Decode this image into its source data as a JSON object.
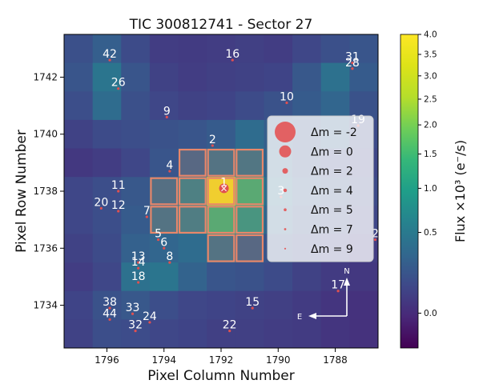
{
  "chart_data": {
    "type": "heatmap",
    "title": "TIC 300812741 - Sector 27",
    "xlabel": "Pixel Column Number",
    "ylabel": "Pixel Row Number",
    "x_axis_inverted": true,
    "xlim": [
      1797.5,
      1786.5
    ],
    "ylim": [
      1732.5,
      1743.5
    ],
    "x_ticks": [
      1796,
      1794,
      1792,
      1790,
      1788
    ],
    "y_ticks": [
      1734,
      1736,
      1738,
      1740,
      1742
    ],
    "columns": [
      1797,
      1796,
      1795,
      1794,
      1793,
      1792,
      1791,
      1790,
      1789,
      1788,
      1787
    ],
    "rows": [
      1743,
      1742,
      1741,
      1740,
      1739,
      1738,
      1737,
      1736,
      1735,
      1734,
      1733
    ],
    "colormap": "viridis",
    "flux_grid_x1000": [
      [
        0.15,
        0.25,
        0.12,
        0.06,
        0.05,
        0.06,
        0.07,
        0.06,
        0.1,
        0.15,
        0.18
      ],
      [
        0.18,
        0.45,
        0.18,
        0.08,
        0.06,
        0.07,
        0.08,
        0.09,
        0.2,
        0.4,
        0.22
      ],
      [
        0.14,
        0.35,
        0.15,
        0.1,
        0.08,
        0.09,
        0.12,
        0.16,
        0.22,
        0.3,
        0.16
      ],
      [
        0.08,
        0.12,
        0.14,
        0.16,
        0.18,
        0.22,
        0.35,
        0.25,
        0.18,
        0.25,
        0.12
      ],
      [
        0.04,
        0.06,
        0.1,
        0.18,
        0.28,
        0.4,
        0.45,
        0.28,
        0.16,
        0.12,
        0.1
      ],
      [
        0.1,
        0.14,
        0.2,
        0.35,
        0.6,
        3.8,
        1.4,
        0.38,
        0.22,
        0.16,
        0.12
      ],
      [
        0.1,
        0.14,
        0.22,
        0.4,
        0.55,
        1.4,
        0.95,
        0.3,
        0.18,
        0.14,
        0.1
      ],
      [
        0.08,
        0.12,
        0.26,
        0.3,
        0.35,
        0.4,
        0.28,
        0.18,
        0.12,
        0.09,
        0.06
      ],
      [
        0.06,
        0.1,
        0.4,
        0.45,
        0.28,
        0.18,
        0.16,
        0.12,
        0.08,
        0.05,
        0.04
      ],
      [
        0.09,
        0.16,
        0.2,
        0.14,
        0.1,
        0.09,
        0.08,
        0.07,
        0.05,
        0.03,
        0.02
      ],
      [
        0.08,
        0.14,
        0.13,
        0.1,
        0.09,
        0.07,
        0.07,
        0.06,
        0.05,
        0.03,
        0.02
      ]
    ],
    "aperture_pixels": [
      [
        1794,
        1738
      ],
      [
        1793,
        1738
      ],
      [
        1792,
        1738
      ],
      [
        1791,
        1738
      ],
      [
        1794,
        1737
      ],
      [
        1793,
        1737
      ],
      [
        1792,
        1737
      ],
      [
        1791,
        1737
      ],
      [
        1793,
        1739
      ],
      [
        1792,
        1739
      ],
      [
        1791,
        1739
      ],
      [
        1792,
        1736
      ],
      [
        1791,
        1736
      ]
    ],
    "stars": [
      {
        "label": "1",
        "col": 1791.9,
        "row": 1738.1
      },
      {
        "label": "2",
        "col": 1792.3,
        "row": 1739.6
      },
      {
        "label": "3",
        "col": 1789.9,
        "row": 1737.8
      },
      {
        "label": "4",
        "col": 1793.8,
        "row": 1738.7
      },
      {
        "label": "5",
        "col": 1794.2,
        "row": 1736.3
      },
      {
        "label": "6",
        "col": 1794.0,
        "row": 1736.0
      },
      {
        "label": "7",
        "col": 1794.6,
        "row": 1737.1
      },
      {
        "label": "8",
        "col": 1793.8,
        "row": 1735.5
      },
      {
        "label": "9",
        "col": 1793.9,
        "row": 1740.6
      },
      {
        "label": "10",
        "col": 1789.7,
        "row": 1741.1
      },
      {
        "label": "11",
        "col": 1795.6,
        "row": 1738.0
      },
      {
        "label": "12",
        "col": 1795.6,
        "row": 1737.3
      },
      {
        "label": "13",
        "col": 1794.9,
        "row": 1735.5
      },
      {
        "label": "14",
        "col": 1794.9,
        "row": 1735.3
      },
      {
        "label": "15",
        "col": 1790.9,
        "row": 1733.9
      },
      {
        "label": "16",
        "col": 1791.6,
        "row": 1742.6
      },
      {
        "label": "17",
        "col": 1787.9,
        "row": 1734.5
      },
      {
        "label": "18",
        "col": 1794.9,
        "row": 1734.8
      },
      {
        "label": "19",
        "col": 1787.2,
        "row": 1740.3
      },
      {
        "label": "20",
        "col": 1796.2,
        "row": 1737.4
      },
      {
        "label": "2",
        "col": 1786.6,
        "row": 1736.3
      },
      {
        "label": "22",
        "col": 1791.7,
        "row": 1733.1
      },
      {
        "label": "24",
        "col": 1794.5,
        "row": 1733.4
      },
      {
        "label": "26",
        "col": 1795.6,
        "row": 1741.6
      },
      {
        "label": "28",
        "col": 1787.4,
        "row": 1742.3
      },
      {
        "label": "31",
        "col": 1787.4,
        "row": 1742.5
      },
      {
        "label": "32",
        "col": 1795.0,
        "row": 1733.1
      },
      {
        "label": "33",
        "col": 1795.1,
        "row": 1733.7
      },
      {
        "label": "38",
        "col": 1795.9,
        "row": 1733.9
      },
      {
        "label": "42",
        "col": 1795.9,
        "row": 1742.6
      },
      {
        "label": "44",
        "col": 1795.9,
        "row": 1733.5
      }
    ],
    "legend": {
      "position": "right",
      "entries": [
        {
          "label": "Δm = -2"
        },
        {
          "label": "Δm = 0"
        },
        {
          "label": "Δm = 2"
        },
        {
          "label": "Δm = 4"
        },
        {
          "label": "Δm = 5"
        },
        {
          "label": "Δm = 7"
        },
        {
          "label": "Δm = 9"
        }
      ]
    },
    "compass": {
      "north": "N",
      "east": "E"
    },
    "colorbar": {
      "label": "Flux ×10³ (e⁻/s)",
      "scale": "sqrt",
      "range": [
        -0.05,
        4.0
      ],
      "ticks": [
        {
          "value": 4.0,
          "label": "4.0"
        },
        {
          "value": 3.5,
          "label": "3.5"
        },
        {
          "value": 3.0,
          "label": "3.0"
        },
        {
          "value": 2.5,
          "label": "2.5"
        },
        {
          "value": 2.0,
          "label": "2.0"
        },
        {
          "value": 1.5,
          "label": "1.5"
        },
        {
          "value": 1.0,
          "label": "1.0"
        },
        {
          "value": 0.5,
          "label": "0.5"
        },
        {
          "value": 0.0,
          "label": "0.0"
        }
      ]
    },
    "colors": {
      "star_marker": "#e05050",
      "aperture_edge": "#e8866a",
      "target_marker": "#ffffff"
    }
  }
}
